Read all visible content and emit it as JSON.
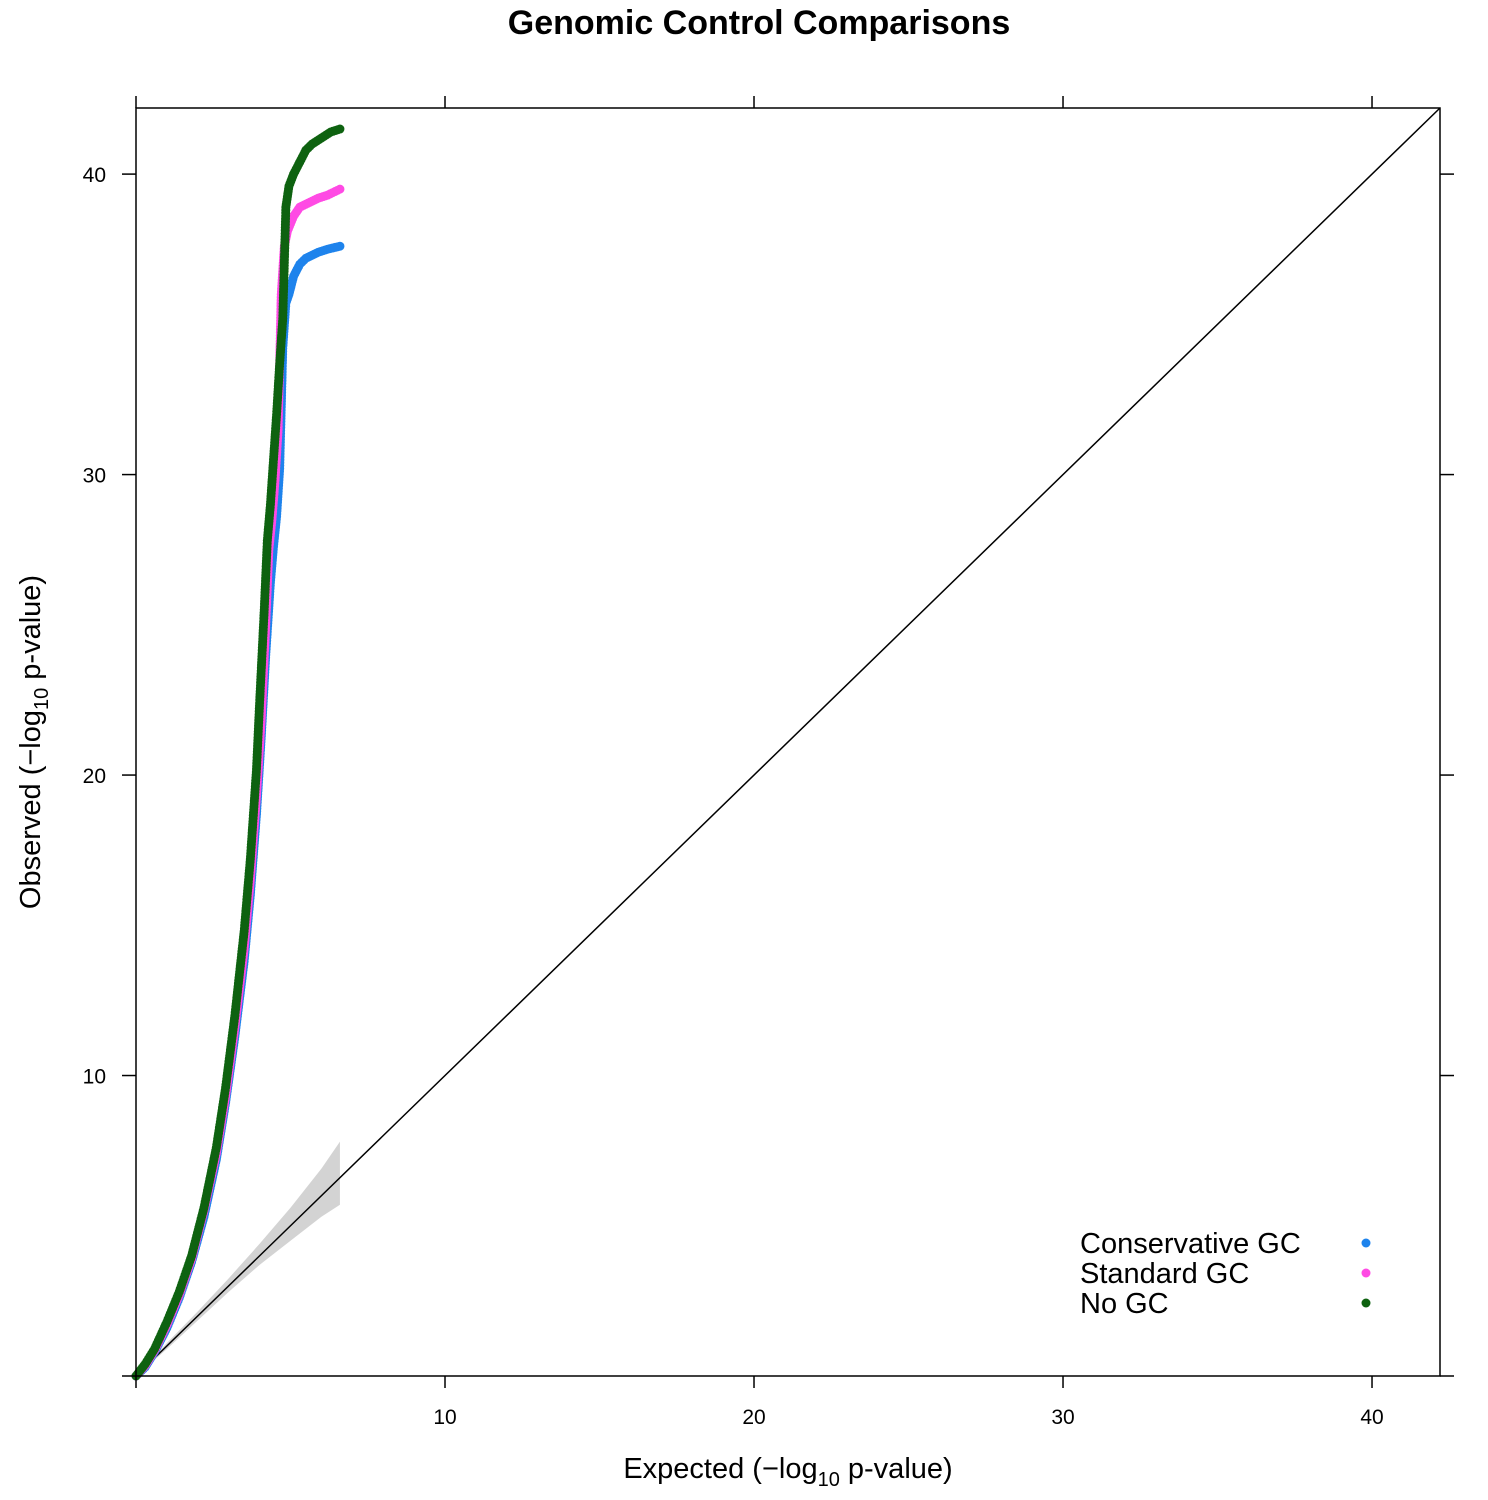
{
  "chart_data": {
    "type": "scatter",
    "title": "Genomic Control Comparisons",
    "xlabel": {
      "prefix": "Expected (−log",
      "sub": "10",
      "suffix": " p-value)"
    },
    "ylabel": {
      "prefix": "Observed (−log",
      "sub": "10",
      "suffix": " p-value)"
    },
    "xlim": [
      0,
      42.2
    ],
    "ylim": [
      0,
      42.2
    ],
    "x_ticks": [
      10,
      20,
      30,
      40
    ],
    "y_ticks": [
      10,
      20,
      30,
      40
    ],
    "grid": false,
    "legend_position": "bottom-right",
    "reference_line": {
      "type": "identity",
      "color": "#000000"
    },
    "confidence_band": {
      "color": "#d3d3d3",
      "points": [
        {
          "x": 0,
          "lower": 0,
          "upper": 0
        },
        {
          "x": 1,
          "lower": 0.9,
          "upper": 1.1
        },
        {
          "x": 2,
          "lower": 1.85,
          "upper": 2.15
        },
        {
          "x": 3,
          "lower": 2.8,
          "upper": 3.25
        },
        {
          "x": 4,
          "lower": 3.7,
          "upper": 4.4
        },
        {
          "x": 5,
          "lower": 4.5,
          "upper": 5.6
        },
        {
          "x": 6,
          "lower": 5.3,
          "upper": 6.9
        },
        {
          "x": 6.6,
          "lower": 5.7,
          "upper": 7.8
        }
      ]
    },
    "series": [
      {
        "name": "Conservative GC",
        "color": "#1e83ec",
        "x": [
          0,
          0.3,
          0.6,
          1.0,
          1.4,
          1.8,
          2.2,
          2.6,
          2.9,
          3.2,
          3.5,
          3.7,
          3.9,
          4.05,
          4.2,
          4.35,
          4.45,
          4.55,
          4.65,
          4.75,
          4.85,
          4.95,
          5.1,
          5.3,
          5.5,
          5.7,
          5.9,
          6.2,
          6.6
        ],
        "y": [
          0,
          0.3,
          0.8,
          1.6,
          2.6,
          3.8,
          5.3,
          7.2,
          9.1,
          11.3,
          13.8,
          16.0,
          18.7,
          21.2,
          24.0,
          26.4,
          27.6,
          28.6,
          30.2,
          34.2,
          35.7,
          36.0,
          36.6,
          37.0,
          37.2,
          37.3,
          37.4,
          37.5,
          37.6
        ]
      },
      {
        "name": "Standard GC",
        "color": "#ff4ae4",
        "x": [
          0,
          0.3,
          0.6,
          1.0,
          1.4,
          1.8,
          2.2,
          2.6,
          2.9,
          3.2,
          3.5,
          3.7,
          3.9,
          4.05,
          4.2,
          4.3,
          4.4,
          4.5,
          4.6,
          4.7,
          4.8,
          4.9,
          5.1,
          5.3,
          5.5,
          5.7,
          5.9,
          6.2,
          6.6
        ],
        "y": [
          0,
          0.35,
          0.85,
          1.7,
          2.7,
          3.9,
          5.5,
          7.4,
          9.3,
          11.6,
          14.2,
          16.5,
          19.3,
          21.8,
          25.0,
          27.5,
          28.5,
          29.8,
          31.5,
          36.0,
          37.6,
          38.1,
          38.6,
          38.9,
          39.0,
          39.1,
          39.2,
          39.3,
          39.5
        ]
      },
      {
        "name": "No GC",
        "color": "#0e6210",
        "x": [
          0,
          0.3,
          0.6,
          1.0,
          1.4,
          1.8,
          2.2,
          2.6,
          2.9,
          3.2,
          3.5,
          3.7,
          3.9,
          4.0,
          4.15,
          4.25,
          4.35,
          4.45,
          4.55,
          4.65,
          4.75,
          4.85,
          4.95,
          5.1,
          5.3,
          5.5,
          5.7,
          6.0,
          6.3,
          6.6
        ],
        "y": [
          0,
          0.4,
          0.9,
          1.8,
          2.8,
          4.0,
          5.6,
          7.6,
          9.6,
          12.0,
          14.8,
          17.2,
          20.2,
          22.4,
          25.5,
          27.8,
          29.0,
          30.5,
          32.0,
          33.7,
          35.2,
          38.9,
          39.6,
          40.0,
          40.4,
          40.8,
          41.0,
          41.2,
          41.4,
          41.5
        ]
      }
    ]
  }
}
